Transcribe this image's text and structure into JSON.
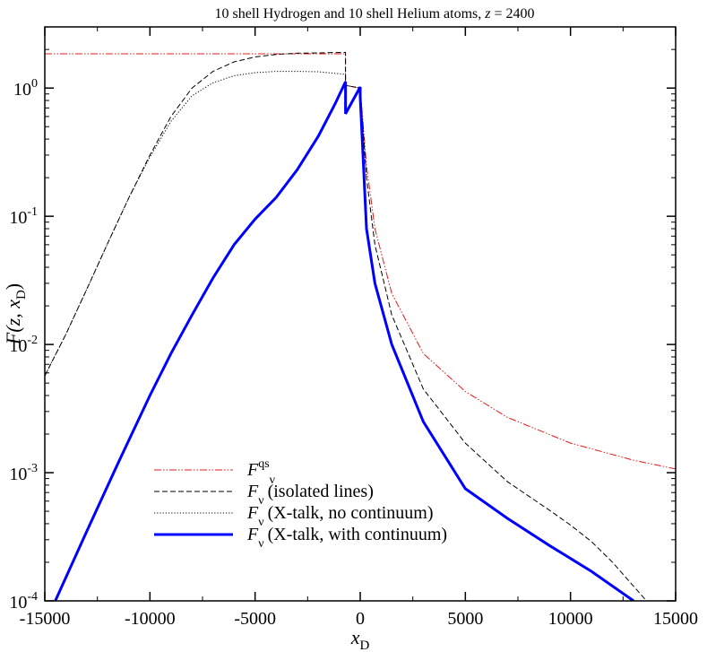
{
  "chart_data": {
    "type": "line",
    "title_text": "10 shell Hydrogen and 10 shell Helium atoms, ",
    "title_var": "z",
    "title_value": " = 2400",
    "xlabel": {
      "main": "x",
      "sub": "D"
    },
    "ylabel": {
      "prefix": "F(z, x",
      "sub": "D",
      "suffix": ")"
    },
    "x_scale": "linear",
    "y_scale": "log",
    "xlim": [
      -15000,
      15000
    ],
    "ylim": [
      0.0001,
      3.0
    ],
    "x_ticks": [
      {
        "value": -15000,
        "label": "-15000"
      },
      {
        "value": -10000,
        "label": "-10000"
      },
      {
        "value": -5000,
        "label": "-5000"
      },
      {
        "value": 0,
        "label": "0"
      },
      {
        "value": 5000,
        "label": "5000"
      },
      {
        "value": 10000,
        "label": "10000"
      },
      {
        "value": 15000,
        "label": "15000"
      }
    ],
    "y_ticks": [
      {
        "value": 1,
        "base": "10",
        "exp": "0"
      },
      {
        "value": 0.1,
        "base": "10",
        "exp": "-1"
      },
      {
        "value": 0.01,
        "base": "10",
        "exp": "-2"
      },
      {
        "value": 0.001,
        "base": "10",
        "exp": "-3"
      },
      {
        "value": 0.0001,
        "base": "10",
        "exp": "-4"
      }
    ],
    "grid": false,
    "legend_position": "bottom-left",
    "series": [
      {
        "legend": {
          "main": "F",
          "sup": "qs",
          "sub": "ν",
          "suffix": ""
        },
        "color": "#e41a1c",
        "style": "dash-dot-dot",
        "width": 1,
        "x": [
          -15000,
          -10000,
          -5000,
          -700,
          -700,
          0,
          300,
          700,
          1500,
          3000,
          5000,
          7000,
          10000,
          13000,
          15000
        ],
        "y": [
          1.85,
          1.85,
          1.85,
          1.85,
          1.05,
          1.0,
          0.25,
          0.08,
          0.025,
          0.0085,
          0.0043,
          0.0027,
          0.0017,
          0.00125,
          0.00107
        ]
      },
      {
        "legend": {
          "main": "F",
          "sup": "",
          "sub": "ν",
          "suffix": "(isolated lines)"
        },
        "color": "#000000",
        "style": "dashed",
        "width": 1,
        "x": [
          -15000,
          -14000,
          -13000,
          -12000,
          -11000,
          -10000,
          -9000,
          -8000,
          -7000,
          -6000,
          -5000,
          -4000,
          -3000,
          -2000,
          -700,
          -700,
          0,
          300,
          700,
          1500,
          3000,
          5000,
          7000,
          9000,
          10000,
          11000,
          12000,
          13000,
          14000,
          14300
        ],
        "y": [
          0.0057,
          0.012,
          0.027,
          0.062,
          0.14,
          0.3,
          0.6,
          1.0,
          1.35,
          1.6,
          1.75,
          1.83,
          1.87,
          1.88,
          1.9,
          1.05,
          1.0,
          0.2,
          0.06,
          0.017,
          0.0045,
          0.0017,
          0.00085,
          0.00051,
          0.00039,
          0.00029,
          0.0002,
          0.00013,
          8.5e-05,
          0.0001
        ]
      },
      {
        "legend": {
          "main": "F",
          "sup": "",
          "sub": "ν",
          "suffix": "(X-talk, no continuum)"
        },
        "color": "#000000",
        "style": "dotted",
        "width": 1,
        "x": [
          -15000,
          -14000,
          -13000,
          -12000,
          -11000,
          -10000,
          -9000,
          -8000,
          -7000,
          -6000,
          -5000,
          -4000,
          -3000,
          -2000,
          -700,
          -700,
          0,
          300
        ],
        "y": [
          0.0057,
          0.012,
          0.027,
          0.062,
          0.14,
          0.29,
          0.55,
          0.87,
          1.1,
          1.25,
          1.32,
          1.35,
          1.35,
          1.34,
          1.28,
          1.05,
          1.0,
          0.2
        ]
      },
      {
        "legend": {
          "main": "F",
          "sup": "",
          "sub": "ν",
          "suffix": "(X-talk, with continuum)"
        },
        "color": "#0000ff",
        "style": "solid",
        "width": 3,
        "x": [
          -14500,
          -13000,
          -11500,
          -10000,
          -9000,
          -8000,
          -7000,
          -6000,
          -5000,
          -4000,
          -3000,
          -2000,
          -1200,
          -700,
          -700,
          0,
          0,
          300,
          700,
          1500,
          3000,
          5000,
          7000,
          9000,
          11000,
          13000
        ],
        "y": [
          0.0001,
          0.00035,
          0.0012,
          0.004,
          0.0085,
          0.017,
          0.033,
          0.06,
          0.095,
          0.14,
          0.23,
          0.42,
          0.75,
          1.12,
          0.63,
          1.02,
          0.85,
          0.08,
          0.03,
          0.01,
          0.0025,
          0.00075,
          0.00044,
          0.00027,
          0.00017,
          0.0001
        ]
      }
    ]
  }
}
